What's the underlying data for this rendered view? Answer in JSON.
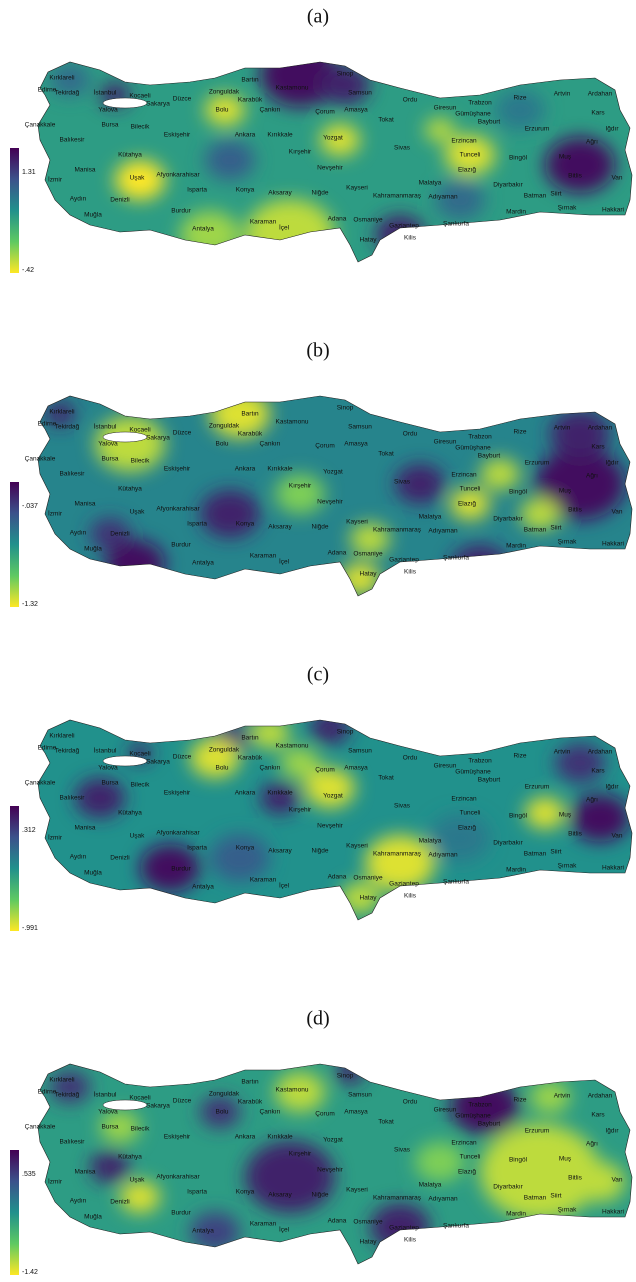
{
  "panels": [
    {
      "label": "(a)",
      "colorbar": {
        "max": "1.31",
        "min": "-.42"
      }
    },
    {
      "label": "(b)",
      "colorbar": {
        "max": "-.037",
        "min": "-1.32"
      }
    },
    {
      "label": "(c)",
      "colorbar": {
        "max": ".312",
        "min": "-.991"
      }
    },
    {
      "label": "(d)",
      "colorbar": {
        "max": ".535",
        "min": "-1.42"
      }
    }
  ],
  "provinces": [
    "Kırklareli",
    "Edirne",
    "Tekirdağ",
    "İstanbul",
    "Kocaeli",
    "Sakarya",
    "Yalova",
    "Düzce",
    "Zonguldak",
    "Bartın",
    "Karabük",
    "Kastamonu",
    "Sinop",
    "Samsun",
    "Ordu",
    "Giresun",
    "Trabzon",
    "Rize",
    "Artvin",
    "Ardahan",
    "Kars",
    "Iğdır",
    "Ağrı",
    "Erzurum",
    "Bayburt",
    "Gümüşhane",
    "Erzincan",
    "Tunceli",
    "Bingöl",
    "Muş",
    "Bitlis",
    "Van",
    "Hakkari",
    "Şırnak",
    "Siirt",
    "Batman",
    "Diyarbakır",
    "Mardin",
    "Şanlıurfa",
    "Adıyaman",
    "Malatya",
    "Elazığ",
    "Kahramanmaraş",
    "Gaziantep",
    "Osmaniye",
    "Kilis",
    "Hatay",
    "Adana",
    "İçel",
    "Karaman",
    "Antalya",
    "Burdur",
    "Isparta",
    "Muğla",
    "Aydın",
    "Denizli",
    "İzmir",
    "Manisa",
    "Uşak",
    "Kütahya",
    "Afyonkarahisar",
    "Balıkesir",
    "Çanakkale",
    "Bursa",
    "Bilecik",
    "Eskişehir",
    "Ankara",
    "Bolu",
    "Çankırı",
    "Çorum",
    "Amasya",
    "Tokat",
    "Kırıkkale",
    "Kırşehir",
    "Yozgat",
    "Sivas",
    "Nevşehir",
    "Kayseri",
    "Aksaray",
    "Niğde",
    "Konya"
  ]
}
